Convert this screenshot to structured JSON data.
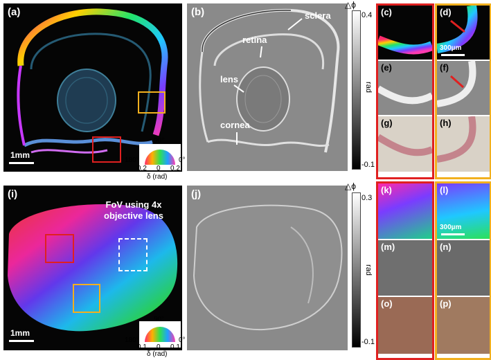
{
  "panels_top": {
    "a": {
      "label": "(a)",
      "scale": "1mm"
    },
    "b": {
      "label": "(b)",
      "annotations": {
        "sclera": "sclera",
        "retina": "retina",
        "lens": "lens",
        "cornea": "cornea"
      }
    },
    "c": {
      "label": "(c)"
    },
    "d": {
      "label": "(d)",
      "scale": "300µm"
    },
    "e": {
      "label": "(e)"
    },
    "f": {
      "label": "(f)"
    },
    "g": {
      "label": "(g)"
    },
    "h": {
      "label": "(h)"
    }
  },
  "panels_bottom": {
    "i": {
      "label": "(i)",
      "scale": "1mm",
      "fov": "FoV using 4x objective lens"
    },
    "j": {
      "label": "(j)"
    },
    "k": {
      "label": "(k)"
    },
    "l": {
      "label": "(l)",
      "scale": "300µm"
    },
    "m": {
      "label": "(m)"
    },
    "n": {
      "label": "(n)"
    },
    "o": {
      "label": "(o)"
    },
    "p": {
      "label": "(p)"
    }
  },
  "colorbar_top": {
    "title": "△ϕ",
    "max": "0.4",
    "min": "-0.1",
    "unit": "rad"
  },
  "colorbar_bottom": {
    "title": "△ϕ",
    "max": "0.3",
    "min": "-0.1",
    "unit": "rad"
  },
  "wheel_top": {
    "deg90": "90°",
    "deg180": "180°",
    "deg0": "0°",
    "left": "0.2",
    "mid": "0",
    "right": "0.2",
    "axis": "δ (rad)"
  },
  "wheel_bottom": {
    "deg90": "90°",
    "deg180": "180°",
    "deg0": "0°",
    "left": "0.1",
    "mid": "0",
    "right": "0.1",
    "axis": "δ (rad)"
  },
  "colors": {
    "red_box": "#e02020",
    "yellow_box": "#f2b01e"
  }
}
